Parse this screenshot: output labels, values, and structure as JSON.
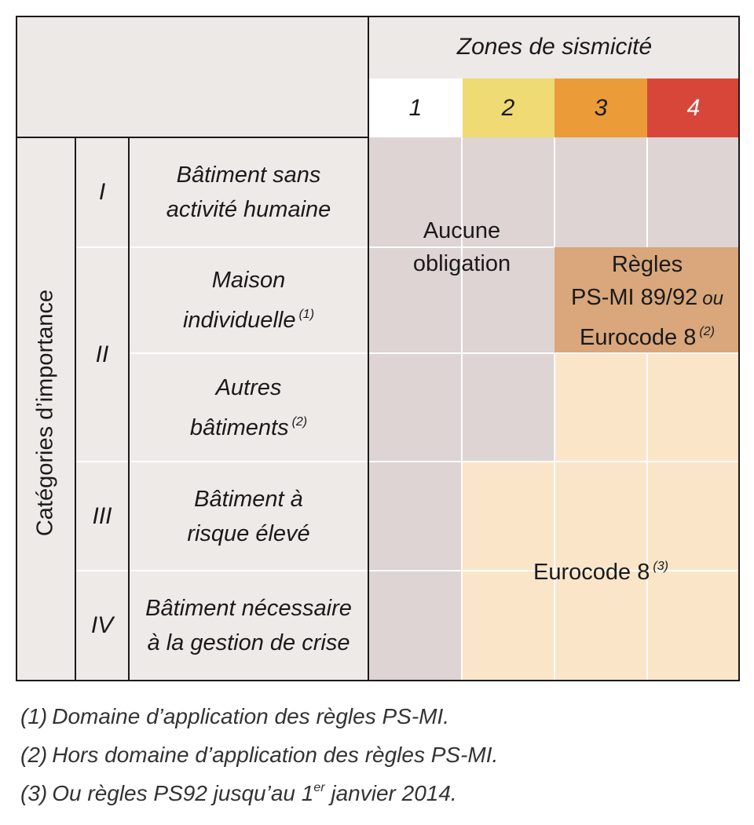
{
  "header": {
    "zones_title": "Zones de sismicité",
    "zones": [
      {
        "label": "1",
        "color": "#ffffff"
      },
      {
        "label": "2",
        "color": "#f0da74"
      },
      {
        "label": "3",
        "color": "#eb9c38"
      },
      {
        "label": "4",
        "color": "#d8463a"
      }
    ]
  },
  "categories_title": "Catégories d’importance",
  "categories": [
    {
      "roman": "I"
    },
    {
      "roman": "II"
    },
    {
      "roman": "III"
    },
    {
      "roman": "IV"
    }
  ],
  "buildings": [
    {
      "line1": "Bâtiment sans",
      "line2": "activité humaine",
      "note": ""
    },
    {
      "line1": "Maison",
      "line2": "individuelle",
      "note": "(1)"
    },
    {
      "line1": "Autres",
      "line2": "bâtiments",
      "note": "(2)"
    },
    {
      "line1": "Bâtiment à",
      "line2": "risque élevé",
      "note": ""
    },
    {
      "line1": "Bâtiment nécessaire",
      "line2": "à la gestion de crise",
      "note": ""
    }
  ],
  "rules": {
    "none": {
      "line1": "Aucune",
      "line2": "obligation"
    },
    "psmi": {
      "line1": "Règles",
      "line2": "PS-MI 89/92",
      "or": "ou",
      "line3": "Eurocode 8",
      "note": "(2)"
    },
    "eurocode": {
      "label": "Eurocode 8",
      "note": "(3)"
    }
  },
  "colors": {
    "grey_cell": "#ddd4d3",
    "beige_cell": "#fbe5c9",
    "tan_cell": "#d9a77b"
  },
  "footnotes": [
    {
      "num": "(1)",
      "text": "Domaine d’application des règles PS-MI."
    },
    {
      "num": "(2)",
      "text": "Hors domaine d’application des règles PS-MI."
    },
    {
      "num": "(3)",
      "text": "Ou règles PS92 jusqu’au 1",
      "sup": "er",
      "tail": " janvier 2014."
    }
  ]
}
